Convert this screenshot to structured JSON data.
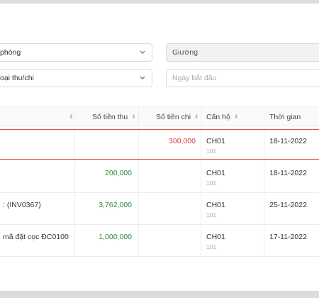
{
  "filters": {
    "room_select": "phòng",
    "bed_select": "Giường",
    "type_select": "oại thu/chi",
    "start_date_placeholder": "Ngày bắt đầu"
  },
  "table": {
    "columns": {
      "income": "Số tiền thu",
      "expense": "Số tiền chi",
      "apartment": "Căn hộ",
      "time": "Thời gian"
    },
    "rows": [
      {
        "desc": "",
        "income": "",
        "expense": "300,000",
        "apartment": "CH01",
        "unit": "101",
        "date": "18-11-2022"
      },
      {
        "desc": "",
        "income": "200,000",
        "expense": "",
        "apartment": "CH01",
        "unit": "101",
        "date": "18-11-2022"
      },
      {
        "desc": ": (INV0367)",
        "income": "3,762,000",
        "expense": "",
        "apartment": "CH01",
        "unit": "101",
        "date": "25-11-2022"
      },
      {
        "desc": "mã đặt cọc ĐC0100",
        "income": "1,000,000",
        "expense": "",
        "apartment": "CH01",
        "unit": "101",
        "date": "17-11-2022"
      }
    ]
  },
  "colors": {
    "income": "#2e8b34",
    "expense": "#e0373c",
    "highlight_border": "#e0523b"
  }
}
